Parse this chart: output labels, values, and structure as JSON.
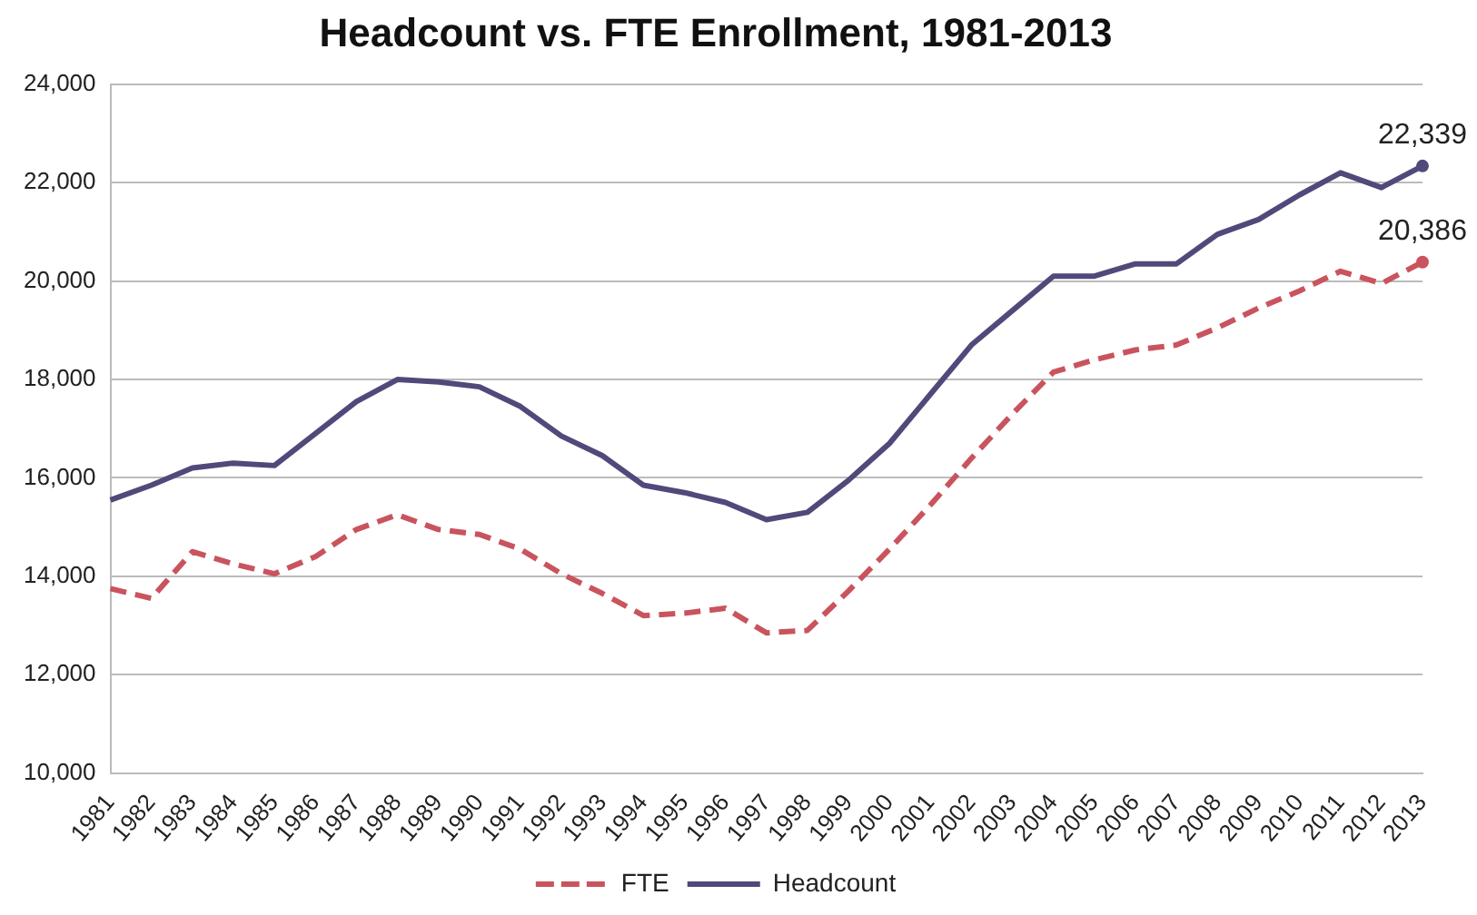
{
  "chart_data": {
    "type": "line",
    "title": "Headcount vs. FTE Enrollment, 1981-2013",
    "categories": [
      "1981",
      "1982",
      "1983",
      "1984",
      "1985",
      "1986",
      "1987",
      "1988",
      "1989",
      "1990",
      "1991",
      "1992",
      "1993",
      "1994",
      "1995",
      "1996",
      "1997",
      "1998",
      "1999",
      "2000",
      "2001",
      "2002",
      "2003",
      "2004",
      "2005",
      "2006",
      "2007",
      "2008",
      "2009",
      "2010",
      "2011",
      "2012",
      "2013"
    ],
    "series": [
      {
        "name": "FTE",
        "color": "#c9545e",
        "line_style": "dashed",
        "values": [
          13750,
          13550,
          14500,
          14250,
          14050,
          14400,
          14950,
          15250,
          14950,
          14850,
          14550,
          14050,
          13650,
          13200,
          13250,
          13350,
          12850,
          12900,
          13700,
          14550,
          15450,
          16400,
          17300,
          18150,
          18400,
          18600,
          18700,
          19050,
          19450,
          19800,
          20200,
          19950,
          20386
        ],
        "value_labels": [
          null,
          null,
          null,
          null,
          null,
          null,
          null,
          null,
          null,
          null,
          null,
          null,
          null,
          null,
          null,
          null,
          null,
          null,
          null,
          null,
          null,
          null,
          null,
          null,
          null,
          null,
          null,
          null,
          null,
          null,
          null,
          null,
          "20,386"
        ]
      },
      {
        "name": "Headcount",
        "color": "#4f4a7a",
        "line_style": "solid",
        "values": [
          15550,
          15850,
          16200,
          16300,
          16250,
          16900,
          17550,
          18000,
          17950,
          17850,
          17450,
          16850,
          16450,
          15850,
          15700,
          15500,
          15150,
          15300,
          15950,
          16700,
          17700,
          18700,
          19400,
          20100,
          20100,
          20350,
          20350,
          20950,
          21250,
          21750,
          22200,
          21900,
          22339
        ],
        "value_labels": [
          null,
          null,
          null,
          null,
          null,
          null,
          null,
          null,
          null,
          null,
          null,
          null,
          null,
          null,
          null,
          null,
          null,
          null,
          null,
          null,
          null,
          null,
          null,
          null,
          null,
          null,
          null,
          null,
          null,
          null,
          null,
          null,
          "22,339"
        ]
      }
    ],
    "ylim": [
      10000,
      24000
    ],
    "yticks": [
      {
        "value": 10000,
        "label": "10,000"
      },
      {
        "value": 12000,
        "label": "12,000"
      },
      {
        "value": 14000,
        "label": "14,000"
      },
      {
        "value": 16000,
        "label": "16,000"
      },
      {
        "value": 18000,
        "label": "18,000"
      },
      {
        "value": 20000,
        "label": "20,000"
      },
      {
        "value": 22000,
        "label": "22,000"
      },
      {
        "value": 24000,
        "label": "24,000"
      }
    ],
    "grid": "y",
    "legend": "bottom"
  }
}
